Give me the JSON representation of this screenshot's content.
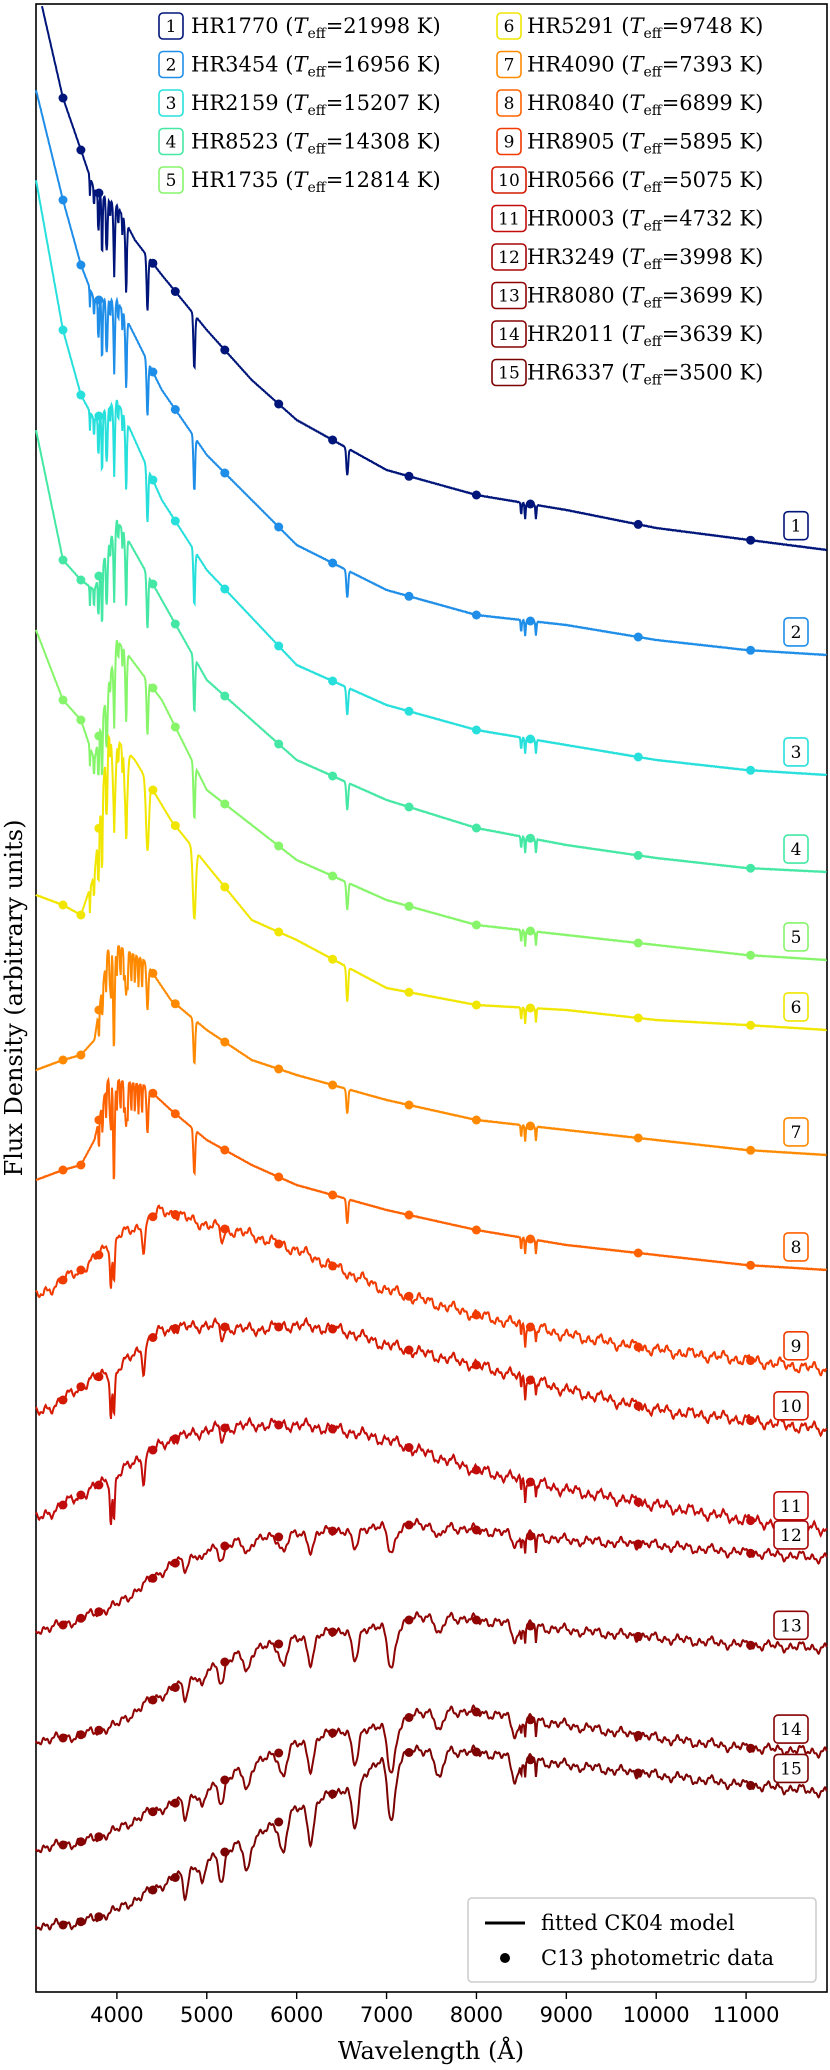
{
  "chart_data": {
    "type": "line",
    "xlabel": "Wavelength (Å)",
    "ylabel": "Flux Density (arbitrary units)",
    "xlim": [
      3100,
      11900
    ],
    "xticks": [
      4000,
      5000,
      6000,
      7000,
      8000,
      9000,
      10000,
      11000
    ],
    "legend_placement": "top",
    "legend2_placement": "bottom-right",
    "model_legend_label": "fitted CK04 model",
    "photometry_legend_label": "C13 photometric data",
    "photometry_x": [
      3400,
      3600,
      3800,
      4400,
      4650,
      5200,
      5800,
      6400,
      7250,
      8000,
      8600,
      9800,
      11050
    ],
    "series": [
      {
        "num": "1",
        "name": "HR1770",
        "teff": "21998",
        "color": "#00157a",
        "offset": 0.0,
        "type": "hot",
        "depth": 1.0
      },
      {
        "num": "2",
        "name": "HR3454",
        "teff": "16956",
        "color": "#1f8ee8",
        "offset": 0.0,
        "type": "hot",
        "depth": 1.0
      },
      {
        "num": "3",
        "name": "HR2159",
        "teff": "15207",
        "color": "#27e0dc",
        "offset": 0.0,
        "type": "hot",
        "depth": 1.0
      },
      {
        "num": "4",
        "name": "HR8523",
        "teff": "14308",
        "color": "#44e8a4",
        "offset": 0.0,
        "type": "hot",
        "depth": 1.0
      },
      {
        "num": "5",
        "name": "HR1735",
        "teff": "12814",
        "color": "#86f56a",
        "offset": 0.0,
        "type": "hot",
        "depth": 1.0
      },
      {
        "num": "6",
        "name": "HR5291",
        "teff": "9748",
        "color": "#f0e600",
        "offset": 0.0,
        "type": "a",
        "depth": 1.0
      },
      {
        "num": "7",
        "name": "HR4090",
        "teff": "7393",
        "color": "#ff8a00",
        "offset": 0.0,
        "type": "f",
        "depth": 1.0
      },
      {
        "num": "8",
        "name": "HR0840",
        "teff": "6899",
        "color": "#ff6200",
        "offset": 0.0,
        "type": "f",
        "depth": 1.0
      },
      {
        "num": "9",
        "name": "HR8905",
        "teff": "5895",
        "color": "#f03a00",
        "offset": 0.0,
        "type": "g",
        "depth": 1.0
      },
      {
        "num": "10",
        "name": "HR0566",
        "teff": "5075",
        "color": "#d41a00",
        "offset": 0.0,
        "type": "k",
        "depth": 1.0
      },
      {
        "num": "11",
        "name": "HR0003",
        "teff": "4732",
        "color": "#c20c0c",
        "offset": 0.0,
        "type": "k",
        "depth": 1.0
      },
      {
        "num": "12",
        "name": "HR3249",
        "teff": "3998",
        "color": "#a80606",
        "offset": 0.0,
        "type": "m",
        "depth": 0.5
      },
      {
        "num": "13",
        "name": "HR8080",
        "teff": "3699",
        "color": "#900404",
        "offset": 0.0,
        "type": "m",
        "depth": 0.8
      },
      {
        "num": "14",
        "name": "HR2011",
        "teff": "3639",
        "color": "#860303",
        "offset": 0.0,
        "type": "m",
        "depth": 0.9
      },
      {
        "num": "15",
        "name": "HR6337",
        "teff": "3500",
        "color": "#7a0202",
        "offset": 0.0,
        "type": "m",
        "depth": 1.2
      }
    ]
  }
}
